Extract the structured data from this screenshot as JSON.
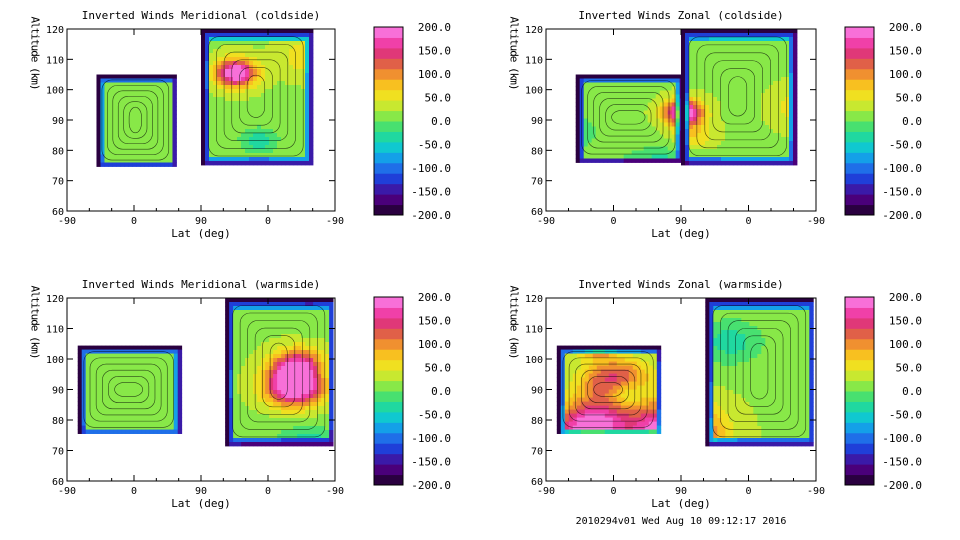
{
  "footer": "2010294v01 Wed Aug 10 09:12:17 2016",
  "colorbar_palette": [
    "#2a0040",
    "#4a007a",
    "#3a1aa8",
    "#1f3fd8",
    "#1f6fe8",
    "#14a0e8",
    "#10c8d0",
    "#20d8a0",
    "#48e070",
    "#88e848",
    "#c8e830",
    "#f0e020",
    "#f8c020",
    "#f09030",
    "#e06048",
    "#e03878",
    "#f040a8",
    "#f870d8"
  ],
  "chart_data": [
    {
      "type": "heatmap",
      "title": "Inverted Winds Meridional (coldside)",
      "xlabel": "Lat (deg)",
      "ylabel": "Altitude (km)",
      "x_ticks": [
        "-90",
        "0",
        "90",
        "0",
        "-90"
      ],
      "y_ticks": [
        "60",
        "70",
        "80",
        "90",
        "100",
        "110",
        "120"
      ],
      "ylim": [
        60,
        120
      ],
      "colorbar_ticks": [
        "200.0",
        "150.0",
        "100.0",
        "50.0",
        "0.0",
        "-50.0",
        "-100.0",
        "-150.0",
        "-200.0"
      ],
      "colorbar_range": [
        -200,
        200
      ]
    },
    {
      "type": "heatmap",
      "title": "Inverted Winds Zonal (coldside)",
      "xlabel": "Lat (deg)",
      "ylabel": "Altitude (km)",
      "x_ticks": [
        "-90",
        "0",
        "90",
        "0",
        "-90"
      ],
      "y_ticks": [
        "60",
        "70",
        "80",
        "90",
        "100",
        "110",
        "120"
      ],
      "ylim": [
        60,
        120
      ],
      "colorbar_ticks": [
        "200.0",
        "150.0",
        "100.0",
        "50.0",
        "0.0",
        "-50.0",
        "-100.0",
        "-150.0",
        "-200.0"
      ],
      "colorbar_range": [
        -200,
        200
      ]
    },
    {
      "type": "heatmap",
      "title": "Inverted Winds Meridional (warmside)",
      "xlabel": "Lat (deg)",
      "ylabel": "Altitude (km)",
      "x_ticks": [
        "-90",
        "0",
        "90",
        "0",
        "-90"
      ],
      "y_ticks": [
        "60",
        "70",
        "80",
        "90",
        "100",
        "110",
        "120"
      ],
      "ylim": [
        60,
        120
      ],
      "colorbar_ticks": [
        "200.0",
        "150.0",
        "100.0",
        "50.0",
        "0.0",
        "-50.0",
        "-100.0",
        "-150.0",
        "-200.0"
      ],
      "colorbar_range": [
        -200,
        200
      ]
    },
    {
      "type": "heatmap",
      "title": "Inverted Winds Zonal (warmside)",
      "xlabel": "Lat (deg)",
      "ylabel": "Altitude (km)",
      "x_ticks": [
        "-90",
        "0",
        "90",
        "0",
        "-90"
      ],
      "y_ticks": [
        "60",
        "70",
        "80",
        "90",
        "100",
        "110",
        "120"
      ],
      "ylim": [
        60,
        120
      ],
      "colorbar_ticks": [
        "200.0",
        "150.0",
        "100.0",
        "50.0",
        "0.0",
        "-50.0",
        "-100.0",
        "-150.0",
        "-200.0"
      ],
      "colorbar_range": [
        -200,
        200
      ]
    }
  ]
}
